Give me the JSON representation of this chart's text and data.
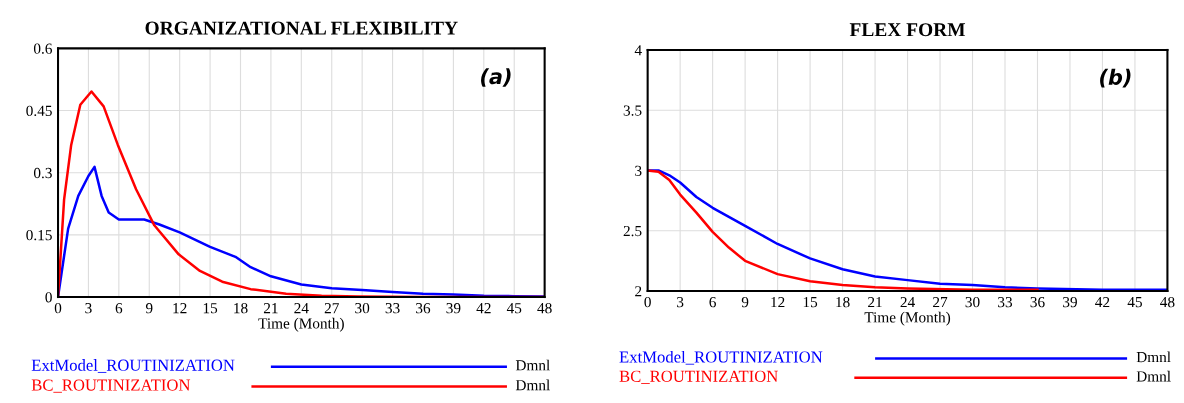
{
  "chart_data": [
    {
      "type": "line",
      "title": "ORGANIZATIONAL FLEXIBILITY",
      "xlabel": "Time (Month)",
      "xlim": [
        0,
        48
      ],
      "xticks": [
        0,
        3,
        6,
        9,
        12,
        15,
        18,
        21,
        24,
        27,
        30,
        33,
        36,
        39,
        42,
        45,
        48
      ],
      "ylim": [
        0,
        0.6
      ],
      "yticks": [
        0,
        0.15,
        0.3,
        0.45,
        0.6
      ],
      "grid": true,
      "legend": "bottom",
      "annotations": [
        "(a)",
        "Dmnl",
        "Dmnl"
      ],
      "series": [
        {
          "name": "ExtModel_ROUTINIZATION",
          "color": "#0000ff",
          "x": [
            0,
            1,
            2,
            3,
            3.6,
            4.3,
            5,
            6,
            8.5,
            10,
            12,
            15,
            17.5,
            19,
            21,
            24,
            27,
            30,
            33,
            36,
            39,
            42,
            45,
            48
          ],
          "values": [
            0,
            0.165,
            0.244,
            0.292,
            0.314,
            0.244,
            0.204,
            0.187,
            0.187,
            0.175,
            0.156,
            0.121,
            0.097,
            0.072,
            0.05,
            0.03,
            0.021,
            0.017,
            0.012,
            0.008,
            0.006,
            0.003,
            0.002,
            0.001
          ]
        },
        {
          "name": "BC_ROUTINIZATION",
          "color": "#ff0000",
          "x": [
            0,
            0.6,
            1.3,
            2.2,
            3.3,
            4.5,
            5.9,
            7.7,
            9.5,
            11.9,
            14,
            16.2,
            19,
            22.5,
            26,
            29.6,
            36,
            48
          ],
          "values": [
            0,
            0.235,
            0.367,
            0.464,
            0.496,
            0.46,
            0.367,
            0.26,
            0.173,
            0.103,
            0.063,
            0.037,
            0.019,
            0.008,
            0.003,
            0.001,
            0,
            0
          ]
        }
      ]
    },
    {
      "type": "line",
      "title": "FLEX FORM",
      "xlabel": "Time (Month)",
      "xlim": [
        0,
        48
      ],
      "xticks": [
        0,
        3,
        6,
        9,
        12,
        15,
        18,
        21,
        24,
        27,
        30,
        33,
        36,
        39,
        42,
        45,
        48
      ],
      "ylim": [
        2,
        4
      ],
      "yticks": [
        2,
        2.5,
        3,
        3.5,
        4
      ],
      "grid": true,
      "legend": "bottom",
      "annotations": [
        "(b)",
        "Dmnl",
        "Dmnl"
      ],
      "series": [
        {
          "name": "ExtModel_ROUTINIZATION",
          "color": "#0000ff",
          "x": [
            0,
            1,
            2,
            3,
            4.5,
            6,
            9,
            12,
            15,
            18,
            21,
            24,
            27,
            30,
            33,
            36,
            42,
            48
          ],
          "values": [
            3,
            3,
            2.96,
            2.9,
            2.78,
            2.69,
            2.54,
            2.39,
            2.27,
            2.18,
            2.12,
            2.09,
            2.06,
            2.05,
            2.03,
            2.02,
            2.01,
            2.01
          ]
        },
        {
          "name": "BC_ROUTINIZATION",
          "color": "#ff0000",
          "x": [
            0,
            1,
            2,
            3,
            4.5,
            6,
            7.5,
            9,
            12,
            15,
            18,
            21,
            24,
            30,
            36
          ],
          "values": [
            3,
            2.99,
            2.92,
            2.8,
            2.65,
            2.49,
            2.36,
            2.25,
            2.14,
            2.08,
            2.05,
            2.03,
            2.02,
            2.01,
            2.01
          ]
        }
      ]
    }
  ]
}
